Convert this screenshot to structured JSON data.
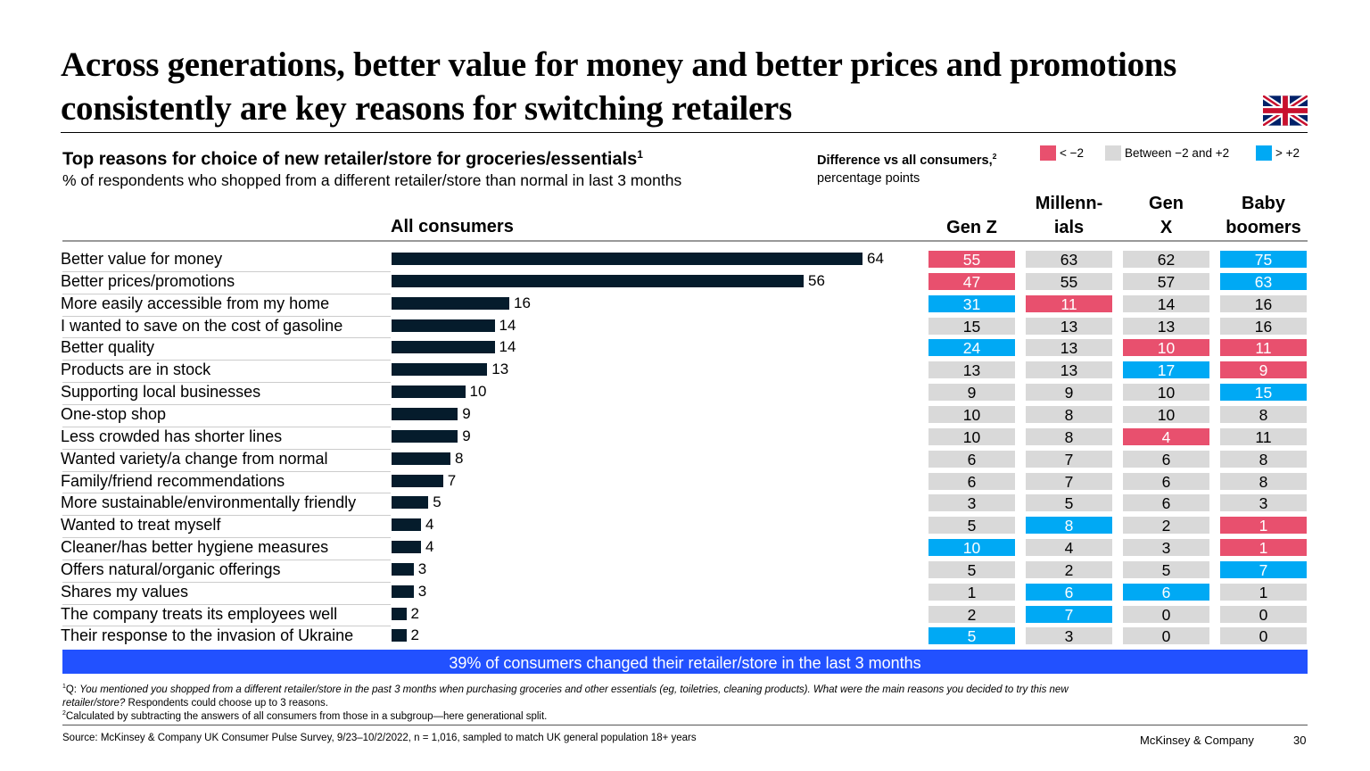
{
  "title": "Across generations, better value for money and better prices and promotions consistently are key reasons for switching retailers",
  "subtitle": "Top reasons for choice of new retailer/store for groceries/essentials",
  "subtitle_sup": "1",
  "subtitle2": "% of respondents who shopped from a different retailer/store than normal in last 3 months",
  "legend": {
    "title": "Difference vs all consumers,",
    "title_sup": "2",
    "title2": "percentage points",
    "items": [
      {
        "label": "< −2",
        "color": "#e8506e"
      },
      {
        "label": "Between −2 and +2",
        "color": "#d9d9d9"
      },
      {
        "label": "> +2",
        "color": "#00a9f4"
      }
    ]
  },
  "banner": "39% of consumers changed their retailer/store in the last 3 months",
  "footnotes": {
    "q_prefix": "Q: ",
    "q_italic": "You mentioned you shopped from a different retailer/store in the past 3 months when purchasing groceries and other essentials (eg, toiletries, cleaning products). What were the main reasons you decided to try this new retailer/store?",
    "q_rest": " Respondents could choose up to 3 reasons.",
    "note2": "Calculated by subtracting the answers of all consumers from those in a subgroup—here generational split."
  },
  "source": "Source: McKinsey & Company UK Consumer Pulse Survey, 9/23–10/2/2022, n = 1,016, sampled to match UK general population 18+ years",
  "brand": "McKinsey & Company",
  "page_number": "30",
  "flag_icon": "uk-flag-icon",
  "chart_data": {
    "type": "bar",
    "orientation": "horizontal",
    "bar_color": "#051c2c",
    "categories": [
      "Better value for money",
      "Better prices/promotions",
      "More easily accessible from my home",
      "I wanted to save on the cost of gasoline",
      "Better quality",
      "Products are in stock",
      "Supporting local businesses",
      "One-stop shop",
      "Less crowded has shorter lines",
      "Wanted variety/a change from normal",
      "Family/friend recommendations",
      "More sustainable/environmentally friendly",
      "Wanted to treat myself",
      "Cleaner/has better hygiene measures",
      "Offers natural/organic offerings",
      "Shares my values",
      "The company treats its employees well",
      "Their response to the invasion of Ukraine"
    ],
    "series": [
      {
        "name": "All consumers",
        "values": [
          64,
          56,
          16,
          14,
          14,
          13,
          10,
          9,
          9,
          8,
          7,
          5,
          4,
          4,
          3,
          3,
          2,
          2
        ]
      }
    ],
    "table": {
      "type": "table",
      "columns": [
        {
          "name": "Gen Z",
          "lines": [
            "",
            "Gen Z"
          ],
          "values": [
            55,
            47,
            31,
            15,
            24,
            13,
            9,
            10,
            10,
            6,
            6,
            3,
            5,
            10,
            5,
            1,
            2,
            5
          ]
        },
        {
          "name": "Millennials",
          "lines": [
            "Millenn-",
            "ials"
          ],
          "values": [
            63,
            55,
            11,
            13,
            13,
            13,
            9,
            8,
            8,
            7,
            7,
            5,
            8,
            4,
            2,
            6,
            7,
            3
          ]
        },
        {
          "name": "Gen X",
          "lines": [
            "Gen",
            "X"
          ],
          "values": [
            62,
            57,
            14,
            13,
            10,
            17,
            10,
            10,
            4,
            6,
            6,
            6,
            2,
            3,
            5,
            6,
            0,
            0
          ]
        },
        {
          "name": "Baby boomers",
          "lines": [
            "Baby",
            "boomers"
          ],
          "values": [
            75,
            63,
            16,
            16,
            11,
            9,
            15,
            8,
            11,
            8,
            8,
            3,
            1,
            1,
            7,
            1,
            0,
            0
          ]
        }
      ]
    }
  }
}
